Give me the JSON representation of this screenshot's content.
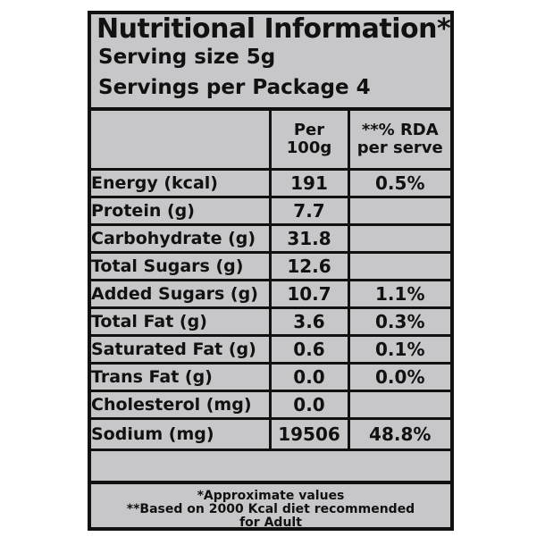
{
  "panel": {
    "title": "Nutritional Information*",
    "serving_size": "Serving size 5g",
    "servings_per_package": "Servings per Package 4"
  },
  "table": {
    "header": {
      "blank": "",
      "per_line1": "Per",
      "per_line2": "100g",
      "rda_line1": "**% RDA",
      "rda_line2": "per serve"
    },
    "rows": [
      {
        "name": "Energy (kcal)",
        "per100g": "191",
        "rda": "0.5%"
      },
      {
        "name": "Protein (g)",
        "per100g": "7.7",
        "rda": ""
      },
      {
        "name": "Carbohydrate (g)",
        "per100g": "31.8",
        "rda": ""
      },
      {
        "name": "Total Sugars (g)",
        "per100g": "12.6",
        "rda": ""
      },
      {
        "name": "Added Sugars (g)",
        "per100g": "10.7",
        "rda": "1.1%"
      },
      {
        "name": "Total Fat (g)",
        "per100g": "3.6",
        "rda": "0.3%"
      },
      {
        "name": "Saturated Fat (g)",
        "per100g": "0.6",
        "rda": "0.1%"
      },
      {
        "name": "Trans Fat (g)",
        "per100g": "0.0",
        "rda": "0.0%"
      },
      {
        "name": "Cholesterol (mg)",
        "per100g": "0.0",
        "rda": ""
      },
      {
        "name": "Sodium (mg)",
        "per100g": "19506",
        "rda": "48.8%"
      }
    ]
  },
  "footnote": {
    "approx": "*Approximate values",
    "based_line1": "**Based on 2000 Kcal diet recommended",
    "based_line2": "for Adult"
  },
  "colors": {
    "panel_background": "#c7c7c9",
    "ink": "#111111"
  }
}
